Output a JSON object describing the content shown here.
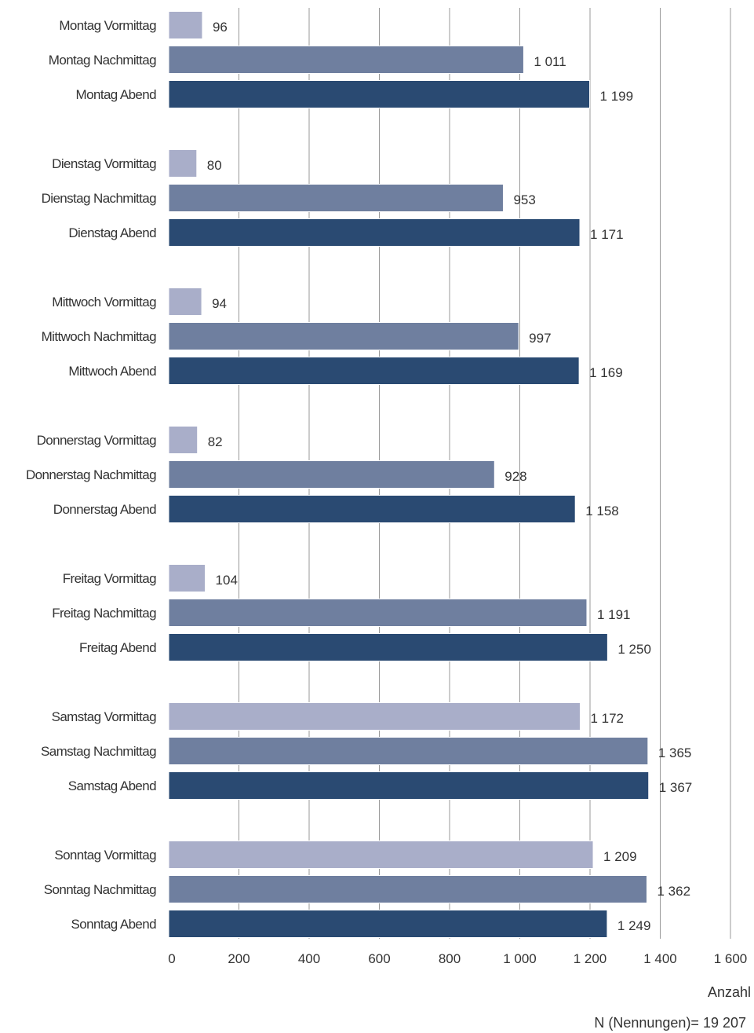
{
  "chart_data": {
    "type": "bar",
    "orientation": "horizontal",
    "categories": [
      "Montag Vormittag",
      "Montag Nachmittag",
      "Montag Abend",
      "Dienstag Vormittag",
      "Dienstag Nachmittag",
      "Dienstag Abend",
      "Mittwoch Vormittag",
      "Mittwoch Nachmittag",
      "Mittwoch Abend",
      "Donnerstag Vormittag",
      "Donnerstag Nachmittag",
      "Donnerstag Abend",
      "Freitag Vormittag",
      "Freitag Nachmittag",
      "Freitag Abend",
      "Samstag Vormittag",
      "Samstag Nachmittag",
      "Samstag Abend",
      "Sonntag Vormittag",
      "Sonntag Nachmittag",
      "Sonntag Abend"
    ],
    "values": [
      96,
      1011,
      1199,
      80,
      953,
      1171,
      94,
      997,
      1169,
      82,
      928,
      1158,
      104,
      1191,
      1250,
      1172,
      1365,
      1367,
      1209,
      1362,
      1249
    ],
    "value_labels": [
      "96",
      "1 011",
      "1 199",
      "80",
      "953",
      "1 171",
      "94",
      "997",
      "1 169",
      "82",
      "928",
      "1 158",
      "104",
      "1 191",
      "1 250",
      "1 172",
      "1 365",
      "1 367",
      "1 209",
      "1 362",
      "1 249"
    ],
    "xlim": [
      0,
      1600
    ],
    "x_ticks": [
      0,
      200,
      400,
      600,
      800,
      1000,
      1200,
      1400,
      1600
    ],
    "x_tick_labels": [
      "0",
      "200",
      "400",
      "600",
      "800",
      "1 000",
      "1 200",
      "1 400",
      "1 600"
    ],
    "xlabel": "Anzahl",
    "ylabel": "",
    "title": "",
    "note": "N (Nennungen)=  19 207",
    "grid": "vertical",
    "colors": {
      "Vormittag": "#a9aec9",
      "Nachmittag": "#6f7f9f",
      "Abend": "#2a4a72",
      "gridline": "#999999",
      "bar_stroke": "#ffffff"
    }
  }
}
